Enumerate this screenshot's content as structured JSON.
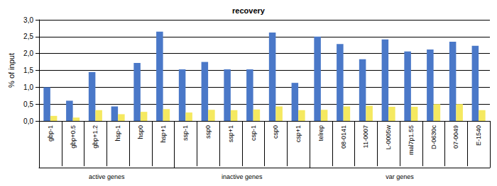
{
  "chart_data": {
    "type": "bar",
    "title": "recovery",
    "y_label": "% of input",
    "categories": [
      "gbp-1",
      "gbp+0.5",
      "gbp+1.2",
      "hsp-1",
      "hsp0",
      "hsp+1",
      "ssp-1",
      "ssp0",
      "ssp+1",
      "csp-1",
      "csp0",
      "csp+1",
      "telrep",
      "08-0141",
      "11-0007",
      "L-0005w",
      "mal7p1.55",
      "D-0630c",
      "07-0049",
      "E-1540"
    ],
    "groups": [
      {
        "label": "active genes",
        "size": 6
      },
      {
        "label": "inactive genes",
        "size": 6
      },
      {
        "label": "var genes",
        "size": 8
      }
    ],
    "series": [
      {
        "color": "#4a78c8",
        "values": [
          1.0,
          0.6,
          1.45,
          0.43,
          1.72,
          2.65,
          1.53,
          1.75,
          1.53,
          1.53,
          2.62,
          1.13,
          2.5,
          2.28,
          1.83,
          2.42,
          2.06,
          2.12,
          2.35,
          2.23
        ]
      },
      {
        "color": "#f5e960",
        "values": [
          0.15,
          0.1,
          0.32,
          0.2,
          0.27,
          0.35,
          0.25,
          0.33,
          0.32,
          0.34,
          0.43,
          0.32,
          0.33,
          0.43,
          0.45,
          0.42,
          0.42,
          0.5,
          0.5,
          0.32
        ]
      }
    ],
    "ylim": [
      0,
      3
    ],
    "yticks": [
      {
        "value": 0,
        "label": "0,0"
      },
      {
        "value": 0.5,
        "label": "0,5"
      },
      {
        "value": 1,
        "label": "1,0"
      },
      {
        "value": 1.5,
        "label": "1,5"
      },
      {
        "value": 2,
        "label": "2,0"
      },
      {
        "value": 2.5,
        "label": "2,5"
      },
      {
        "value": 3,
        "label": "3,0"
      }
    ],
    "grid": true
  }
}
